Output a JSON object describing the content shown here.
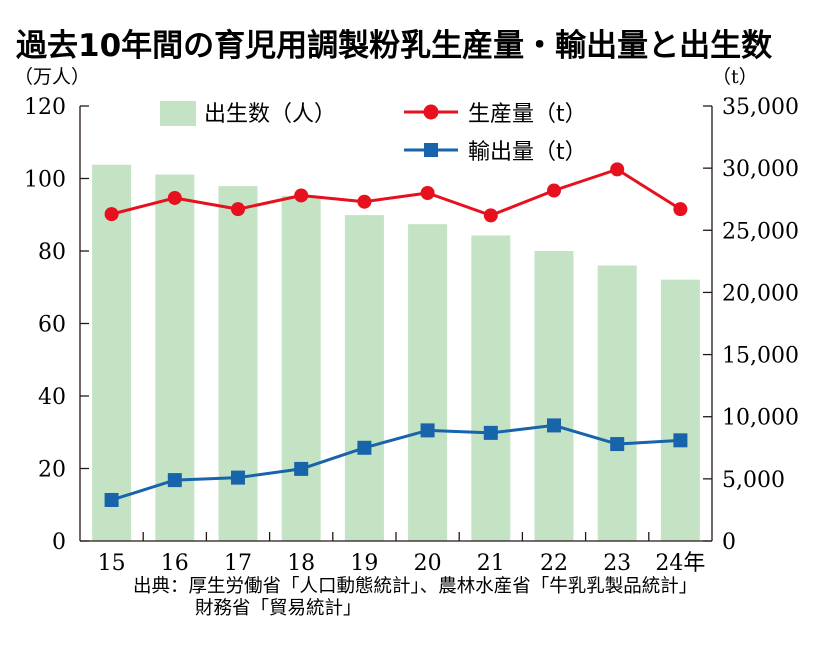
{
  "title": "過去10年間の育児用調製粉乳生産量・輸出量と出生数",
  "colors": {
    "births": "#c4e3c4",
    "production": "#e6101e",
    "exports": "#1764ab",
    "axis": "#231815"
  },
  "chart_data": {
    "type": "bar+line",
    "categories": [
      "15",
      "16",
      "17",
      "18",
      "19",
      "20",
      "21",
      "22",
      "23",
      "24年"
    ],
    "left_axis": {
      "unit": "（万人）",
      "ylim": [
        0,
        120
      ],
      "ticks": [
        "0",
        "20",
        "40",
        "60",
        "80",
        "100",
        "120"
      ]
    },
    "right_axis": {
      "unit": "（t）",
      "ylim": [
        0,
        35000
      ],
      "ticks": [
        "0",
        "5,000",
        "10,000",
        "15,000",
        "20,000",
        "25,000",
        "30,000",
        "35,000"
      ]
    },
    "series": [
      {
        "name": "出生数（人）",
        "type": "bar",
        "axis": "left",
        "values": [
          103.8,
          101.1,
          97.9,
          95.2,
          89.9,
          87.4,
          84.3,
          80.0,
          76.0,
          72.1
        ]
      },
      {
        "name": "生産量（t）",
        "type": "line",
        "marker": "circle",
        "axis": "right",
        "values": [
          26300,
          27600,
          26700,
          27800,
          27300,
          28000,
          26200,
          28200,
          29900,
          26700
        ]
      },
      {
        "name": "輸出量（t）",
        "type": "line",
        "marker": "square",
        "axis": "right",
        "values": [
          3300,
          4900,
          5100,
          5800,
          7500,
          8900,
          8700,
          9300,
          7800,
          8100
        ]
      }
    ],
    "legend": "top",
    "grid": false
  },
  "source_lines": [
    "出典：厚生労働省「人口動態統計」、農林水産省「牛乳乳製品統計」",
    "財務省「貿易統計」"
  ]
}
